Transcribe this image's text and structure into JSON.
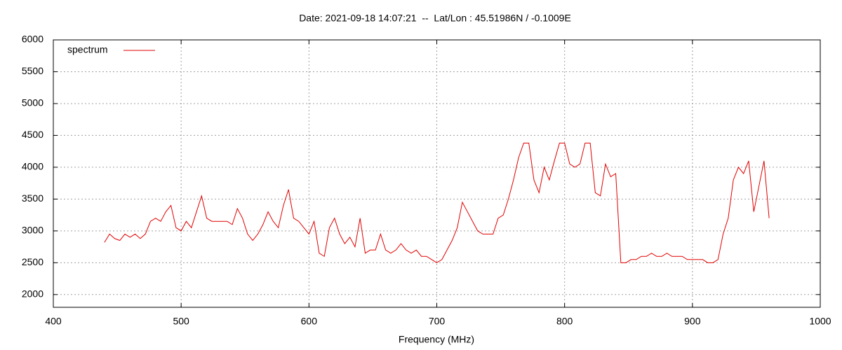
{
  "chart_data": {
    "type": "line",
    "title": "Date: 2021-09-18 14:07:21  --  Lat/Lon : 45.51986N / -0.1009E",
    "x_label": "Frequency (MHz)",
    "xlim": [
      400,
      1000
    ],
    "xticks": [
      400,
      500,
      600,
      700,
      800,
      900,
      1000
    ],
    "ylim": [
      1800,
      6000
    ],
    "yticks": [
      2000,
      2500,
      3000,
      3500,
      4000,
      4500,
      5000,
      5500,
      6000
    ],
    "grid": true,
    "legend": "top-left",
    "x": [
      440,
      444,
      448,
      452,
      456,
      460,
      464,
      468,
      472,
      476,
      480,
      484,
      488,
      492,
      496,
      500,
      504,
      508,
      512,
      516,
      520,
      524,
      528,
      532,
      536,
      540,
      544,
      548,
      552,
      556,
      560,
      564,
      568,
      572,
      576,
      580,
      584,
      588,
      592,
      596,
      600,
      604,
      608,
      612,
      616,
      620,
      624,
      628,
      632,
      636,
      640,
      644,
      648,
      652,
      656,
      660,
      664,
      668,
      672,
      676,
      680,
      684,
      688,
      692,
      696,
      700,
      704,
      708,
      712,
      716,
      720,
      724,
      728,
      732,
      736,
      740,
      744,
      748,
      752,
      756,
      760,
      764,
      768,
      772,
      776,
      780,
      784,
      788,
      792,
      796,
      800,
      804,
      808,
      812,
      816,
      820,
      824,
      828,
      832,
      836,
      840,
      844,
      848,
      852,
      856,
      860,
      864,
      868,
      872,
      876,
      880,
      884,
      888,
      892,
      896,
      900,
      904,
      908,
      912,
      916,
      920,
      924,
      928,
      932,
      936,
      940,
      944,
      948,
      952,
      956,
      960
    ],
    "series": [
      {
        "name": "spectrum",
        "color": "#e00000",
        "values": [
          2820,
          2950,
          2880,
          2850,
          2950,
          2900,
          2950,
          2880,
          2950,
          3150,
          3200,
          3150,
          3300,
          3400,
          3050,
          3000,
          3150,
          3050,
          3300,
          3550,
          3200,
          3150,
          3150,
          3150,
          3150,
          3100,
          3350,
          3200,
          2950,
          2850,
          2950,
          3100,
          3300,
          3150,
          3050,
          3400,
          3650,
          3200,
          3150,
          3050,
          2950,
          3150,
          2650,
          2600,
          3050,
          3200,
          2950,
          2800,
          2900,
          2750,
          3200,
          2650,
          2700,
          2700,
          2950,
          2700,
          2650,
          2700,
          2800,
          2700,
          2650,
          2700,
          2600,
          2600,
          2550,
          2500,
          2550,
          2700,
          2850,
          3050,
          3450,
          3300,
          3150,
          3000,
          2950,
          2950,
          2950,
          3200,
          3250,
          3500,
          3800,
          4150,
          4380,
          4380,
          3800,
          3600,
          4000,
          3800,
          4100,
          4380,
          4380,
          4050,
          4000,
          4050,
          4380,
          4380,
          3600,
          3550,
          4050,
          3850,
          3900,
          2500,
          2500,
          2550,
          2550,
          2600,
          2600,
          2650,
          2600,
          2600,
          2650,
          2600,
          2600,
          2600,
          2550,
          2550,
          2550,
          2550,
          2500,
          2500,
          2550,
          2950,
          3200,
          3800,
          4000,
          3900,
          4100,
          3300,
          3700,
          4100,
          3200
        ]
      }
    ]
  }
}
